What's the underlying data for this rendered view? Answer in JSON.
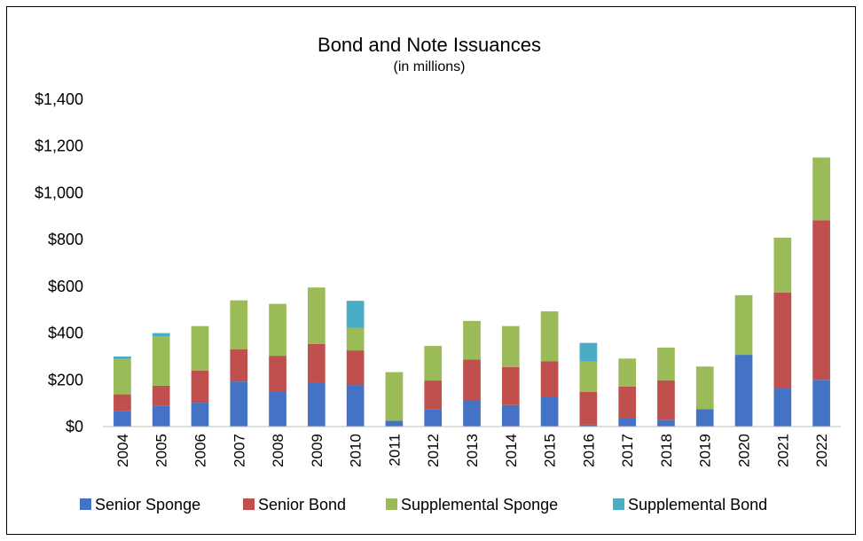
{
  "chart_data": {
    "type": "bar",
    "stacked": true,
    "title": "Bond and Note Issuances",
    "subtitle": "(in millions)",
    "xlabel": "",
    "ylabel": "",
    "ylim": [
      0,
      1400
    ],
    "y_ticks": [
      0,
      200,
      400,
      600,
      800,
      1000,
      1200,
      1400
    ],
    "y_tick_labels": [
      "$0",
      "$200",
      "$400",
      "$600",
      "$800",
      "$1,000",
      "$1,200",
      "$1,400"
    ],
    "grid": false,
    "legend_position": "bottom",
    "categories": [
      "2004",
      "2005",
      "2006",
      "2007",
      "2008",
      "2009",
      "2010",
      "2011",
      "2012",
      "2013",
      "2014",
      "2015",
      "2016",
      "2017",
      "2018",
      "2019",
      "2020",
      "2021",
      "2022"
    ],
    "series": [
      {
        "name": "Senior Sponge",
        "color": "#4472c4",
        "values": [
          65,
          88,
          102,
          193,
          150,
          188,
          178,
          25,
          75,
          112,
          92,
          127,
          8,
          38,
          28,
          75,
          307,
          163,
          200
        ]
      },
      {
        "name": "Senior Bond",
        "color": "#c0504d",
        "values": [
          73,
          87,
          138,
          137,
          153,
          165,
          148,
          0,
          122,
          175,
          163,
          153,
          140,
          133,
          170,
          0,
          0,
          410,
          683
        ]
      },
      {
        "name": "Supplemental Sponge",
        "color": "#9bbb59",
        "values": [
          152,
          212,
          190,
          210,
          222,
          242,
          97,
          208,
          148,
          165,
          175,
          213,
          130,
          120,
          140,
          182,
          255,
          235,
          268
        ]
      },
      {
        "name": "Supplemental Bond",
        "color": "#4bacc6",
        "values": [
          10,
          13,
          0,
          0,
          0,
          0,
          115,
          0,
          0,
          0,
          0,
          0,
          80,
          0,
          0,
          0,
          0,
          0,
          0
        ]
      }
    ]
  }
}
